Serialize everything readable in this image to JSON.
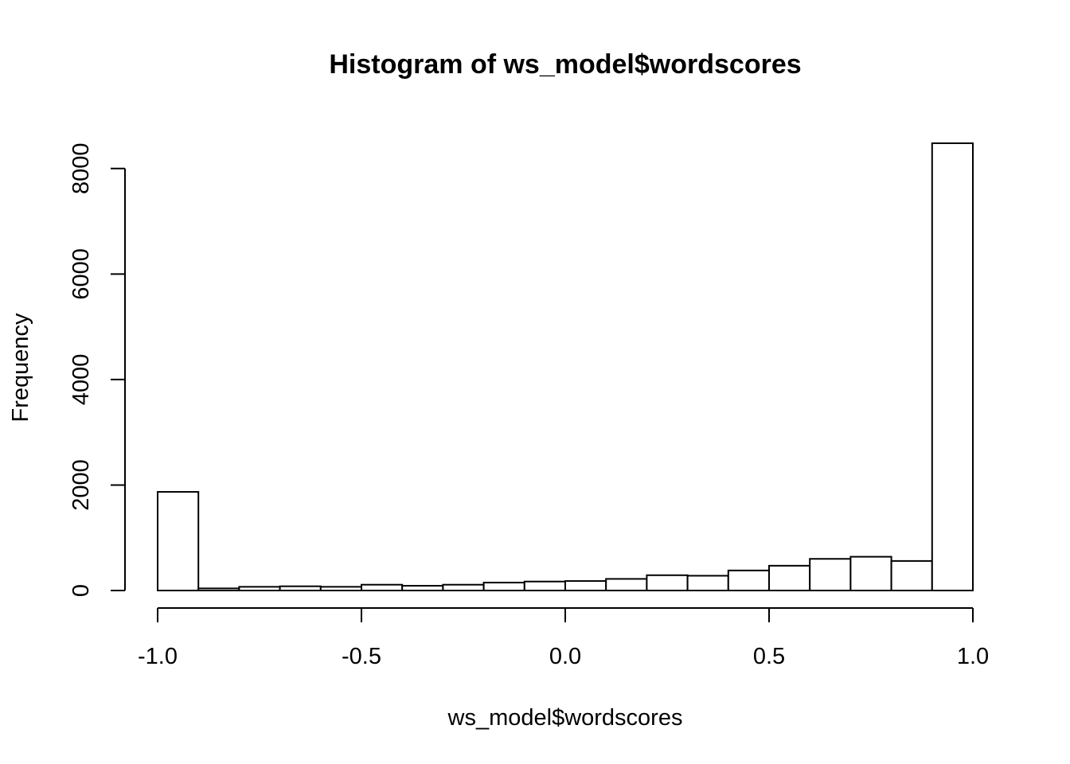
{
  "chart_data": {
    "type": "bar",
    "title": "Histogram of ws_model$wordscores",
    "xlabel": "ws_model$wordscores",
    "ylabel": "Frequency",
    "xlim": [
      -1.0,
      1.0
    ],
    "ylim": [
      0,
      8480
    ],
    "x_ticks": [
      -1.0,
      -0.5,
      0.0,
      0.5,
      1.0
    ],
    "x_tick_labels": [
      "-1.0",
      "-0.5",
      "0.0",
      "0.5",
      "1.0"
    ],
    "y_ticks": [
      0,
      2000,
      4000,
      6000,
      8000
    ],
    "y_tick_labels": [
      "0",
      "2000",
      "4000",
      "6000",
      "8000"
    ],
    "bins": [
      {
        "start": -1.0,
        "end": -0.9,
        "count": 1870
      },
      {
        "start": -0.9,
        "end": -0.8,
        "count": 40
      },
      {
        "start": -0.8,
        "end": -0.7,
        "count": 70
      },
      {
        "start": -0.7,
        "end": -0.6,
        "count": 80
      },
      {
        "start": -0.6,
        "end": -0.5,
        "count": 70
      },
      {
        "start": -0.5,
        "end": -0.4,
        "count": 110
      },
      {
        "start": -0.4,
        "end": -0.3,
        "count": 90
      },
      {
        "start": -0.3,
        "end": -0.2,
        "count": 110
      },
      {
        "start": -0.2,
        "end": -0.1,
        "count": 150
      },
      {
        "start": -0.1,
        "end": 0.0,
        "count": 170
      },
      {
        "start": 0.0,
        "end": 0.1,
        "count": 180
      },
      {
        "start": 0.1,
        "end": 0.2,
        "count": 220
      },
      {
        "start": 0.2,
        "end": 0.3,
        "count": 290
      },
      {
        "start": 0.3,
        "end": 0.4,
        "count": 280
      },
      {
        "start": 0.4,
        "end": 0.5,
        "count": 380
      },
      {
        "start": 0.5,
        "end": 0.6,
        "count": 470
      },
      {
        "start": 0.6,
        "end": 0.7,
        "count": 600
      },
      {
        "start": 0.7,
        "end": 0.8,
        "count": 640
      },
      {
        "start": 0.8,
        "end": 0.9,
        "count": 560
      },
      {
        "start": 0.9,
        "end": 1.0,
        "count": 8480
      }
    ],
    "grid": false,
    "bar_fill": "#ffffff",
    "bar_stroke": "#000000"
  }
}
